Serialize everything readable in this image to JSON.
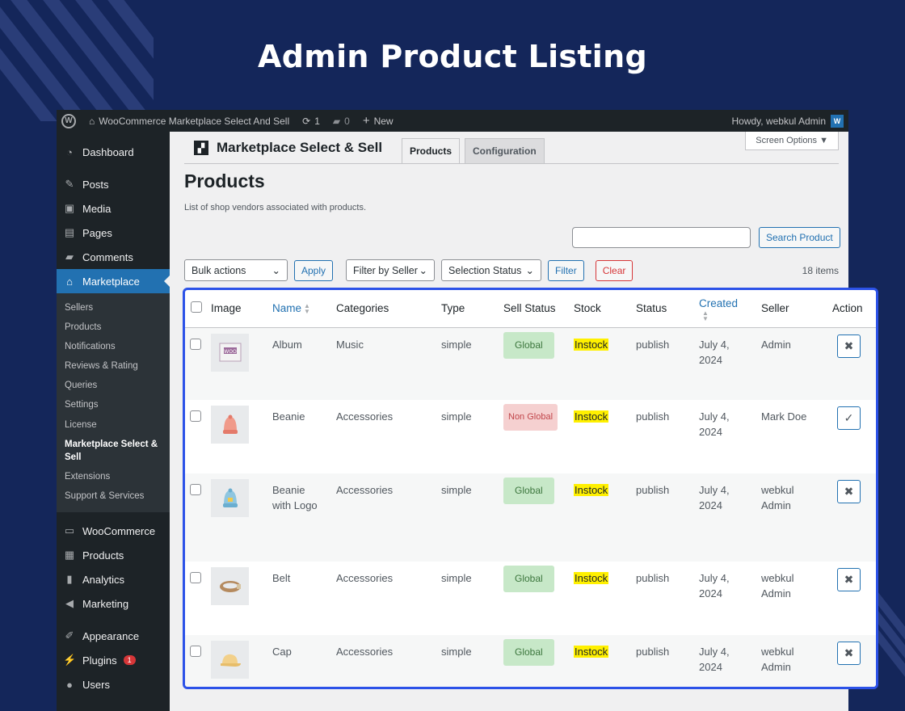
{
  "hero": {
    "title": "Admin Product Listing"
  },
  "adminbar": {
    "wp_logo": "W",
    "site_name": "WooCommerce Marketplace Select And Sell",
    "updates_count": "1",
    "comments_count": "0",
    "new_label": "New",
    "howdy": "Howdy, webkul Admin",
    "avatar_letter": "W"
  },
  "sidebar": {
    "dashboard": "Dashboard",
    "posts": "Posts",
    "media": "Media",
    "pages": "Pages",
    "comments": "Comments",
    "marketplace": "Marketplace",
    "submenu": [
      "Sellers",
      "Products",
      "Notifications",
      "Reviews & Rating",
      "Queries",
      "Settings",
      "License",
      "Marketplace Select & Sell",
      "Extensions",
      "Support & Services"
    ],
    "woocommerce": "WooCommerce",
    "products": "Products",
    "analytics": "Analytics",
    "marketing": "Marketing",
    "appearance": "Appearance",
    "plugins": "Plugins",
    "plugins_badge": "1",
    "users": "Users"
  },
  "header": {
    "plugin_name": "Marketplace Select & Sell",
    "tabs": [
      "Products",
      "Configuration"
    ],
    "screen_options": "Screen Options ▼",
    "page_title": "Products",
    "description": "List of shop vendors associated with products."
  },
  "search": {
    "placeholder": "",
    "button": "Search Product"
  },
  "filters": {
    "bulk_actions": "Bulk actions",
    "apply": "Apply",
    "seller": "Filter by Seller",
    "selection_status": "Selection Status",
    "filter": "Filter",
    "clear": "Clear",
    "items_count": "18 items"
  },
  "table": {
    "columns": [
      "Image",
      "Name",
      "Categories",
      "Type",
      "Sell Status",
      "Stock",
      "Status",
      "Created",
      "Seller",
      "Action"
    ],
    "rows": [
      {
        "name": "Album",
        "category": "Music",
        "type": "simple",
        "sell_status": "Global",
        "stock": "Instock",
        "status": "publish",
        "created_date": "July 4,",
        "created_year": "2024",
        "seller1": "Admin",
        "seller2": "",
        "action": "✖",
        "image": "album-icon"
      },
      {
        "name": "Beanie",
        "category": "Accessories",
        "type": "simple",
        "sell_status": "Non Global",
        "stock": "Instock",
        "status": "publish",
        "created_date": "July 4,",
        "created_year": "2024",
        "seller1": "Mark Doe",
        "seller2": "",
        "action": "✓",
        "image": "beanie-icon"
      },
      {
        "name": "Beanie with Logo",
        "category": "Accessories",
        "type": "simple",
        "sell_status": "Global",
        "stock": "Instock",
        "status": "publish",
        "created_date": "July 4,",
        "created_year": "2024",
        "seller1": "webkul",
        "seller2": "Admin",
        "action": "✖",
        "image": "beanie-logo-icon"
      },
      {
        "name": "Belt",
        "category": "Accessories",
        "type": "simple",
        "sell_status": "Global",
        "stock": "Instock",
        "status": "publish",
        "created_date": "July 4,",
        "created_year": "2024",
        "seller1": "webkul",
        "seller2": "Admin",
        "action": "✖",
        "image": "belt-icon"
      },
      {
        "name": "Cap",
        "category": "Accessories",
        "type": "simple",
        "sell_status": "Global",
        "stock": "Instock",
        "status": "publish",
        "created_date": "July 4,",
        "created_year": "2024",
        "seller1": "webkul",
        "seller2": "Admin",
        "action": "✖",
        "image": "cap-icon"
      }
    ]
  },
  "colors": {
    "background": "#14265a",
    "highlight_frame": "#2c52e8",
    "wp_blue": "#2271b1",
    "stock_highlight": "#fff000"
  }
}
